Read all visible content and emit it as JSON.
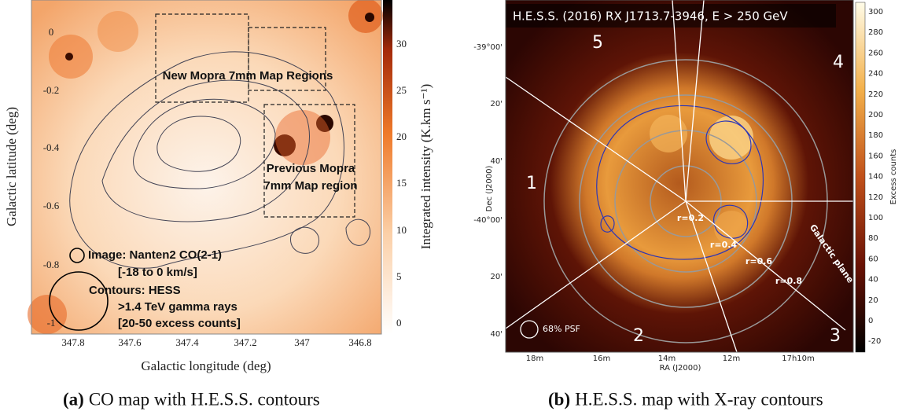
{
  "panel_a": {
    "y_ticks": [
      "0",
      "-0.2",
      "-0.4",
      "-0.6",
      "-0.8",
      "-1"
    ],
    "x_ticks": [
      "347.8",
      "347.6",
      "347.4",
      "347.2",
      "347",
      "346.8"
    ],
    "colorbar_ticks": [
      "30",
      "25",
      "20",
      "15",
      "10",
      "5",
      "0"
    ],
    "y_label": "Galactic latitude (deg)",
    "x_label": "Galactic longitude (deg)",
    "colorbar_label": "Integrated intensity (K.km s⁻¹)",
    "annotations": [
      "New Mopra 7mm Map Regions",
      "Previous Mopra",
      "7mm Map region",
      "Image: Nanten2 CO(2-1)",
      "[-18 to 0 km/s]",
      "Contours: HESS",
      ">1.4 TeV gamma rays",
      "[20-50 excess counts]"
    ],
    "caption": {
      "label": "(a)",
      "text": "CO map with H.E.S.S. contours"
    }
  },
  "panel_b": {
    "title": "H.E.S.S. (2016) RX J1713.7-3946, E > 250 GeV",
    "y_ticks": [
      "-39°00'",
      "20'",
      "40'",
      "-40°00'",
      "20'",
      "40'"
    ],
    "x_ticks": [
      "18m",
      "16m",
      "14m",
      "12m",
      "17h10m"
    ],
    "y_label": "Dec (J2000)",
    "x_label": "RA (J2000)",
    "colorbar_ticks": [
      "300",
      "280",
      "260",
      "240",
      "220",
      "200",
      "180",
      "160",
      "140",
      "120",
      "100",
      "80",
      "60",
      "40",
      "20",
      "0",
      "-20"
    ],
    "colorbar_label": "Excess counts",
    "sectors": [
      "5",
      "4",
      "1",
      "2",
      "3"
    ],
    "radii": [
      "r=0.2",
      "r=0.4",
      "r=0.6",
      "r=0.8"
    ],
    "plane_label": "Galactic plane",
    "psf_label": "68% PSF",
    "caption": {
      "label": "(b)",
      "text": "H.E.S.S. map with X-ray contours"
    }
  }
}
